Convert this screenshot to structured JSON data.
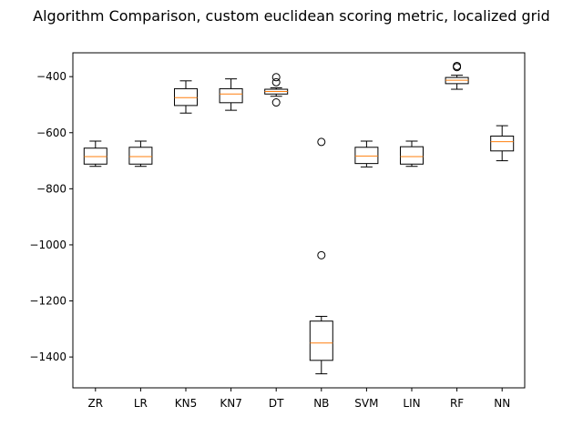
{
  "chart_data": {
    "type": "box",
    "title": "Algorithm Comparison, custom euclidean scoring metric, localized grid",
    "xlabel": "",
    "ylabel": "",
    "ylim": [
      -1510,
      -315
    ],
    "yticks": [
      -400,
      -600,
      -800,
      -1000,
      -1200,
      -1400
    ],
    "grid": false,
    "box_color": "#000000",
    "median_color": "#ff7f0e",
    "categories": [
      "ZR",
      "LR",
      "KN5",
      "KN7",
      "DT",
      "NB",
      "SVM",
      "LIN",
      "RF",
      "NN"
    ],
    "boxes": [
      {
        "label": "ZR",
        "whisker_low": -720,
        "q1": -712,
        "median": -685,
        "q3": -655,
        "whisker_high": -630,
        "outliers": []
      },
      {
        "label": "LR",
        "whisker_low": -720,
        "q1": -712,
        "median": -685,
        "q3": -652,
        "whisker_high": -630,
        "outliers": []
      },
      {
        "label": "KN5",
        "whisker_low": -530,
        "q1": -503,
        "median": -475,
        "q3": -443,
        "whisker_high": -415,
        "outliers": []
      },
      {
        "label": "KN7",
        "whisker_low": -520,
        "q1": -493,
        "median": -462,
        "q3": -443,
        "whisker_high": -408,
        "outliers": []
      },
      {
        "label": "DT",
        "whisker_low": -470,
        "q1": -462,
        "median": -453,
        "q3": -445,
        "whisker_high": -440,
        "outliers": [
          -402,
          -420,
          -492
        ]
      },
      {
        "label": "NB",
        "whisker_low": -1460,
        "q1": -1412,
        "median": -1350,
        "q3": -1272,
        "whisker_high": -1255,
        "outliers": [
          -633,
          -1037
        ]
      },
      {
        "label": "SVM",
        "whisker_low": -722,
        "q1": -710,
        "median": -683,
        "q3": -652,
        "whisker_high": -630,
        "outliers": []
      },
      {
        "label": "LIN",
        "whisker_low": -720,
        "q1": -712,
        "median": -685,
        "q3": -650,
        "whisker_high": -630,
        "outliers": []
      },
      {
        "label": "RF",
        "whisker_low": -445,
        "q1": -425,
        "median": -413,
        "q3": -403,
        "whisker_high": -395,
        "outliers": [
          -362,
          -366
        ]
      },
      {
        "label": "NN",
        "whisker_low": -700,
        "q1": -665,
        "median": -632,
        "q3": -612,
        "whisker_high": -575,
        "outliers": []
      }
    ]
  }
}
